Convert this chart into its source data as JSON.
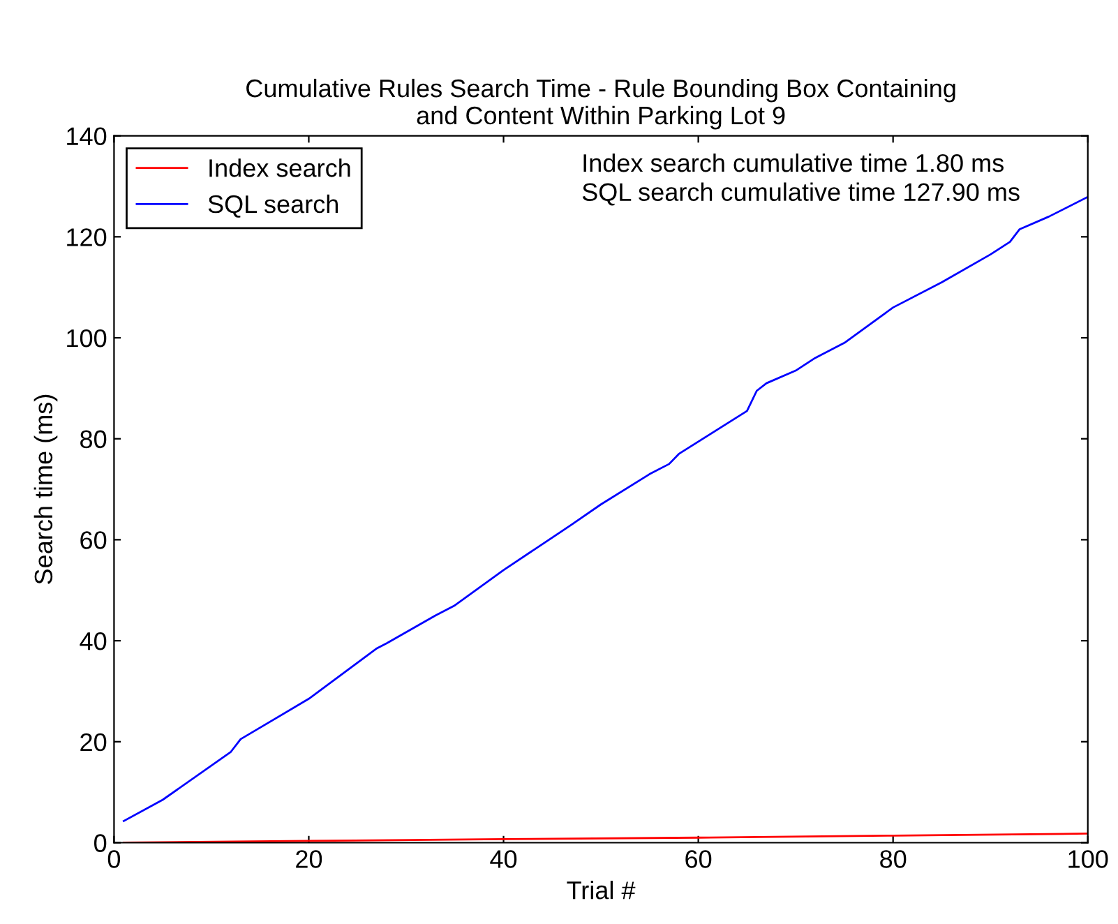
{
  "chart_data": {
    "type": "line",
    "title": "Cumulative Rules Search Time - Rule Bounding Box Containing\nand Content Within Parking Lot 9",
    "xlabel": "Trial #",
    "ylabel": "Search time (ms)",
    "annotations": [
      "Index search cumulative time 1.80 ms\nSQL search cumulative time 127.90 ms"
    ],
    "series": [
      {
        "name": "Index search",
        "color": "#ff0000",
        "x": [
          1,
          20,
          40,
          60,
          80,
          100
        ],
        "values": [
          0.02,
          0.35,
          0.7,
          1.0,
          1.4,
          1.8
        ]
      },
      {
        "name": "SQL search",
        "color": "#0000ff",
        "x": [
          1,
          5,
          12,
          13,
          20,
          27,
          28,
          33,
          35,
          40,
          47,
          50,
          55,
          57,
          58,
          65,
          66,
          67,
          70,
          72,
          75,
          80,
          85,
          90,
          92,
          93,
          96,
          100
        ],
        "values": [
          4.3,
          8.5,
          18,
          20.5,
          28.5,
          38.5,
          39.5,
          45,
          47,
          54,
          63,
          67,
          73,
          75,
          77,
          85.5,
          89.5,
          91,
          93.5,
          96,
          99,
          106,
          111,
          116.5,
          119,
          121.5,
          124,
          127.9
        ]
      }
    ],
    "xlim": [
      0,
      100
    ],
    "xticks": [
      0,
      20,
      40,
      60,
      80,
      100
    ],
    "ylim": [
      0,
      140
    ],
    "yticks": [
      0,
      20,
      40,
      60,
      80,
      100,
      120,
      140
    ],
    "grid": false,
    "legend": "top left"
  }
}
